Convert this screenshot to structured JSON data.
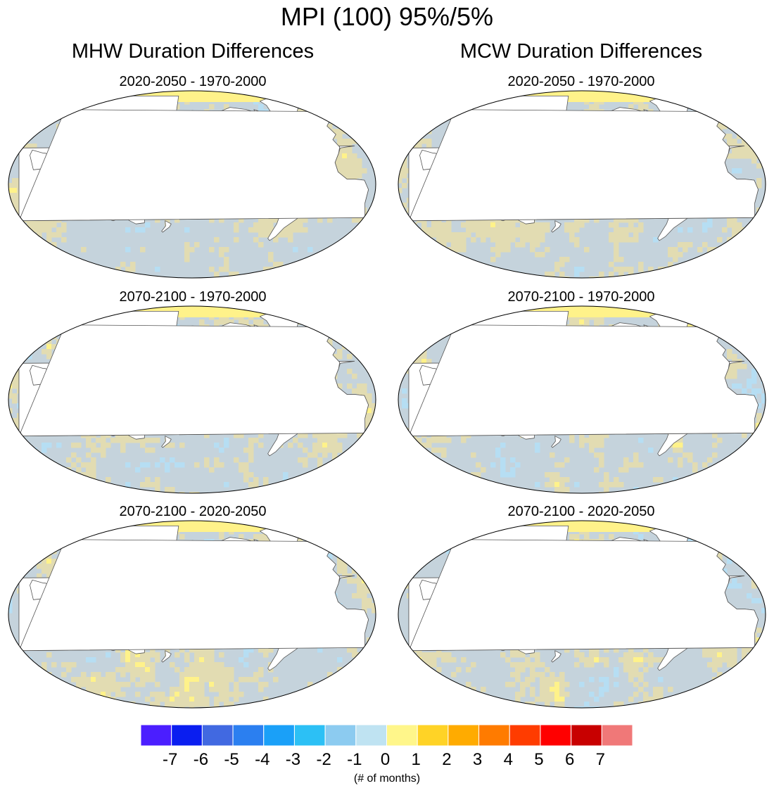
{
  "title": "MPI (100) 95%/5%",
  "columns": [
    {
      "title": "MHW Duration Differences"
    },
    {
      "title": "MCW Duration Differences"
    }
  ],
  "panels": [
    {
      "label": "2020-2050 - 1970-2000"
    },
    {
      "label": "2020-2050 - 1970-2000"
    },
    {
      "label": "2070-2100 - 1970-2000"
    },
    {
      "label": "2070-2100 - 1970-2000"
    },
    {
      "label": "2070-2100 - 2020-2050"
    },
    {
      "label": "2070-2100 - 2020-2050"
    }
  ],
  "colorbar": {
    "labels": [
      "-7",
      "-6",
      "-5",
      "-4",
      "-3",
      "-2",
      "-1",
      "0",
      "1",
      "2",
      "3",
      "4",
      "5",
      "6",
      "7"
    ],
    "colors": [
      "#4b1eff",
      "#0a1ef0",
      "#4169e1",
      "#2b7ff0",
      "#1aa0f8",
      "#2cc0f5",
      "#8ccbf0",
      "#bfe3f2",
      "#fff68a",
      "#ffd326",
      "#ffab00",
      "#ff7b00",
      "#ff3c00",
      "#ff0000",
      "#c80000",
      "#f07878"
    ],
    "units": "(# of months)"
  },
  "palette": {
    "ocean_base": "#c5d3dc",
    "ocean_warm": "#e2dcb2",
    "ocean_yellow": "#fff28a",
    "ocean_blue": "#b6def3",
    "land": "#ffffff",
    "outline": "#555555"
  }
}
